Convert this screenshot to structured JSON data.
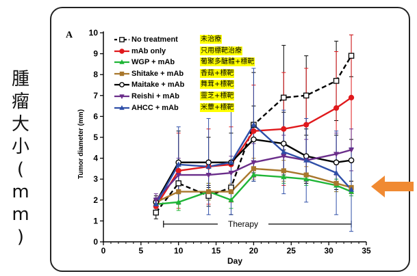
{
  "side_label": [
    "腫",
    "瘤",
    "大",
    "小",
    "(",
    "m",
    "m",
    ")"
  ],
  "chart_data": {
    "type": "line",
    "panel_label": "A",
    "xlabel": "Day",
    "ylabel": "Tumor diameter (mm)",
    "xlim": [
      0,
      35
    ],
    "ylim": [
      0,
      10
    ],
    "xticks": [
      "0",
      "5",
      "10",
      "15",
      "20",
      "25",
      "30",
      "35"
    ],
    "yticks": [
      "0",
      "1",
      "2",
      "3",
      "4",
      "5",
      "6",
      "7",
      "8",
      "9",
      "10"
    ],
    "x": [
      7,
      10,
      14,
      17,
      20,
      24,
      27,
      31,
      33
    ],
    "therapy": {
      "label": "Therapy",
      "start": 8,
      "end": 33
    },
    "series": [
      {
        "name": "No treatment",
        "zh": "未治療",
        "color": "#000000",
        "dash": true,
        "marker": "square-open",
        "values": [
          1.4,
          2.8,
          2.2,
          2.6,
          5.6,
          6.9,
          7.0,
          7.7,
          8.9
        ],
        "err": [
          0.3,
          1.0,
          0.5,
          1.3,
          2.5,
          2.5,
          1.9,
          1.9,
          1.0
        ]
      },
      {
        "name": "mAb only",
        "zh": "只用標靶治療",
        "color": "#e0191c",
        "marker": "circle",
        "values": [
          1.7,
          3.4,
          3.6,
          3.7,
          5.3,
          5.4,
          5.6,
          6.4,
          6.9
        ],
        "err": [
          0.4,
          1.8,
          1.8,
          1.8,
          2.2,
          2.7,
          2.7,
          2.7,
          3.0
        ]
      },
      {
        "name": "WGP + mAb",
        "zh": "葡聚多醣體+標靶",
        "color": "#1fb536",
        "marker": "triangle-up",
        "values": [
          1.8,
          1.9,
          2.4,
          2.0,
          3.2,
          3.1,
          3.0,
          2.7,
          2.4
        ],
        "err": [
          0.2,
          0.4,
          0.4,
          0.4,
          0.3,
          0.3,
          0.3,
          0.3,
          0.2
        ]
      },
      {
        "name": "Shitake + mAb",
        "zh": "香菇+標靶",
        "color": "#a8772c",
        "marker": "square",
        "values": [
          1.9,
          2.4,
          2.4,
          2.4,
          3.5,
          3.4,
          3.2,
          2.8,
          2.6
        ],
        "err": [
          0.2,
          0.5,
          0.4,
          0.4,
          0.5,
          0.5,
          0.4,
          0.4,
          0.3
        ]
      },
      {
        "name": "Maitake + mAb",
        "zh": "舞茸+標靶",
        "color": "#000000",
        "marker": "circle-open",
        "values": [
          1.9,
          3.8,
          3.8,
          3.8,
          4.9,
          4.7,
          4.1,
          3.8,
          3.9
        ],
        "err": [
          0.3,
          1.5,
          1.2,
          1.4,
          1.6,
          1.5,
          1.3,
          1.3,
          1.0
        ]
      },
      {
        "name": "Reishi + mAb",
        "zh": "靈芝+標靶",
        "color": "#6a2d8a",
        "marker": "triangle-down",
        "values": [
          2.0,
          3.2,
          3.2,
          3.3,
          3.8,
          4.1,
          3.9,
          4.2,
          4.4
        ],
        "err": [
          0.3,
          0.8,
          0.7,
          0.8,
          0.9,
          1.0,
          1.0,
          1.0,
          1.0
        ]
      },
      {
        "name": "AHCC + mAb",
        "zh": "米蕈+標靶",
        "color": "#2f4fa8",
        "marker": "triangle-up",
        "values": [
          1.8,
          3.7,
          3.6,
          3.8,
          5.6,
          4.3,
          3.9,
          3.3,
          2.5
        ],
        "err": [
          0.3,
          1.8,
          2.3,
          2.5,
          2.7,
          2.0,
          2.0,
          2.0,
          2.0
        ]
      }
    ]
  },
  "colors": {
    "frame": "#222222",
    "arrow": "#f08a32",
    "highlight": "#ffff00"
  }
}
